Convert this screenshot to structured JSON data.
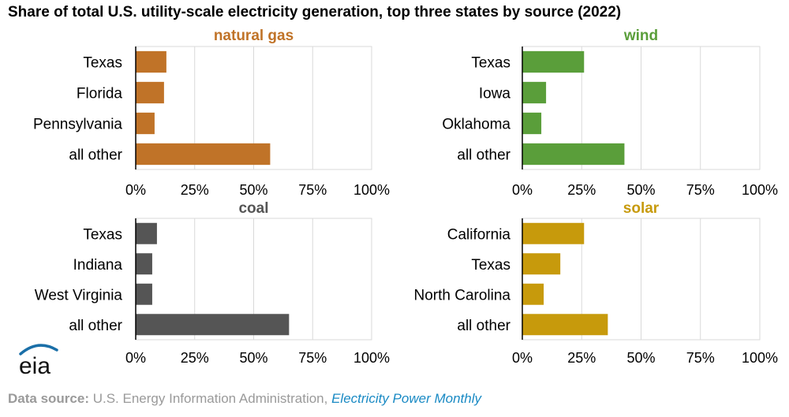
{
  "title": "Share of total U.S. utility-scale electricity generation, top three states by source (2022)",
  "chart_data": [
    {
      "type": "bar",
      "orientation": "horizontal",
      "title": "natural gas",
      "color": "#c07328",
      "categories": [
        "Texas",
        "Florida",
        "Pennsylvania",
        "all other"
      ],
      "values": [
        13,
        12,
        8,
        57
      ],
      "xlim": [
        0,
        100
      ],
      "ticks": [
        "0%",
        "25%",
        "50%",
        "75%",
        "100%"
      ],
      "grid": true
    },
    {
      "type": "bar",
      "orientation": "horizontal",
      "title": "wind",
      "color": "#5a9e3a",
      "categories": [
        "Texas",
        "Iowa",
        "Oklahoma",
        "all other"
      ],
      "values": [
        26,
        10,
        8,
        43
      ],
      "xlim": [
        0,
        100
      ],
      "ticks": [
        "0%",
        "25%",
        "50%",
        "75%",
        "100%"
      ],
      "grid": true
    },
    {
      "type": "bar",
      "orientation": "horizontal",
      "title": "coal",
      "color": "#555555",
      "categories": [
        "Texas",
        "Indiana",
        "West Virginia",
        "all other"
      ],
      "values": [
        9,
        7,
        7,
        65
      ],
      "xlim": [
        0,
        100
      ],
      "ticks": [
        "0%",
        "25%",
        "50%",
        "75%",
        "100%"
      ],
      "grid": true
    },
    {
      "type": "bar",
      "orientation": "horizontal",
      "title": "solar",
      "color": "#c79a0c",
      "categories": [
        "California",
        "Texas",
        "North Carolina",
        "all other"
      ],
      "values": [
        26,
        16,
        9,
        36
      ],
      "xlim": [
        0,
        100
      ],
      "ticks": [
        "0%",
        "25%",
        "50%",
        "75%",
        "100%"
      ],
      "grid": true
    }
  ],
  "logo": {
    "text": "eia",
    "icon": "eia-logo-icon"
  },
  "source": {
    "label": "Data source:",
    "org": "U.S. Energy Information Administration,",
    "publication": "Electricity Power Monthly"
  }
}
